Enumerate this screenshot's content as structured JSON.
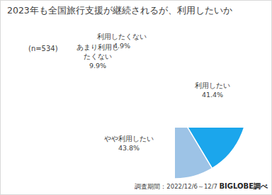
{
  "chart_data": {
    "type": "pie",
    "title": "2023年も全国旅行支援が継続されるが、利用したいか",
    "subtitle": "(n=534)",
    "categories": [
      "利用したい",
      "やや利用したい",
      "あまり利用したくない",
      "利用したくない"
    ],
    "values": [
      41.4,
      43.8,
      9.9,
      4.9
    ],
    "value_labels": [
      "41.4%",
      "43.8%",
      "9.9%",
      "4.9%"
    ],
    "colors": [
      "#1ba6ec",
      "#9dc3e6",
      "#f4b183",
      "#ed7d31"
    ],
    "data_labels": true,
    "annotations": [
      "調査期間：2022/12/6～12/7",
      "BIGLOBE調べ"
    ]
  }
}
